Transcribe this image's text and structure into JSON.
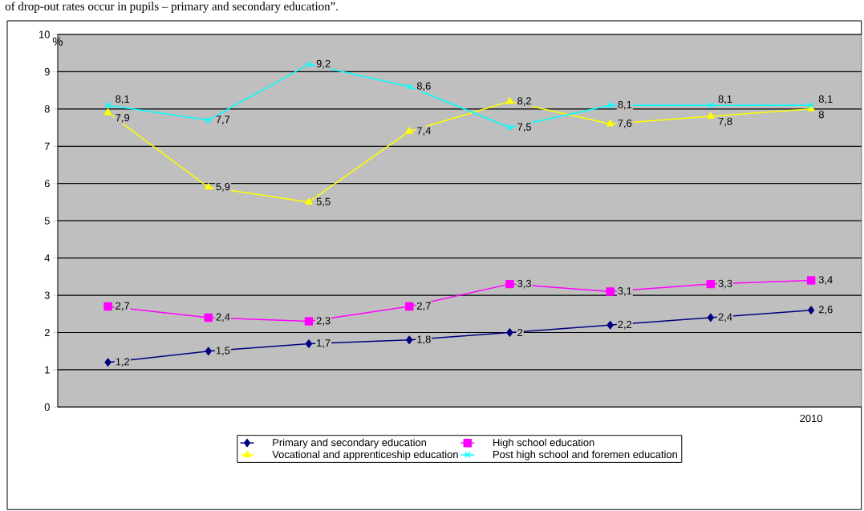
{
  "chart_data": {
    "type": "line",
    "annotations": [
      "of drop-out rates occur in pupils – primary and secondary education”."
    ],
    "ylabel": "%",
    "categories": [
      null,
      null,
      null,
      null,
      null,
      null,
      null,
      "2010"
    ],
    "series": [
      {
        "name": "Primary and secondary education",
        "color": "#000080",
        "marker": "diamond",
        "values": [
          1.2,
          1.5,
          1.7,
          1.8,
          2,
          2.2,
          2.4,
          2.6
        ],
        "value_labels": [
          "1,2",
          "1,5",
          "1,7",
          "1,8",
          "2",
          "2,2",
          "2,4",
          "2,6"
        ]
      },
      {
        "name": "High school education",
        "color": "#ff00ff",
        "marker": "square",
        "values": [
          2.7,
          2.4,
          2.3,
          2.7,
          3.3,
          3.1,
          3.3,
          3.4
        ],
        "value_labels": [
          "2,7",
          "2,4",
          "2,3",
          "2,7",
          "3,3",
          "3,1",
          "3,3",
          "3,4"
        ]
      },
      {
        "name": "Vocational and apprenticeship education",
        "color": "#ffff00",
        "marker": "triangle",
        "values": [
          7.9,
          5.9,
          5.5,
          7.4,
          8.2,
          7.6,
          7.8,
          8
        ],
        "value_labels": [
          "7,9",
          "5,9",
          "5,5",
          "7,4",
          "8,2",
          "7,6",
          "7,8",
          "8"
        ]
      },
      {
        "name": "Post high school and foremen education",
        "color": "#00ffff",
        "marker": "cross",
        "values": [
          8.1,
          7.7,
          9.2,
          8.6,
          7.5,
          8.1,
          8.1,
          8.1
        ],
        "value_labels": [
          "8,1",
          "7,7",
          "9,2",
          "8,6",
          "7,5",
          "8,1",
          "8,1",
          "8,1"
        ]
      }
    ],
    "ylim": [
      0,
      10
    ],
    "yticks": [
      0,
      1,
      2,
      3,
      4,
      5,
      6,
      7,
      8,
      9,
      10
    ],
    "grid": "y",
    "legend": "bottom"
  }
}
